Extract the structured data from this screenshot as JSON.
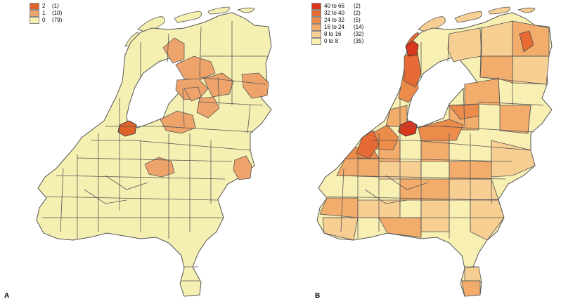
{
  "panels": [
    {
      "label": "A",
      "legend": [
        {
          "label": "2",
          "count": "(1)",
          "color": "#e0632a"
        },
        {
          "label": "1",
          "count": "(10)",
          "color": "#eea36a"
        },
        {
          "label": "0",
          "count": "(79)",
          "color": "#f5efb2"
        }
      ]
    },
    {
      "label": "B",
      "legend": [
        {
          "label": "40 to 66",
          "count": "(2)",
          "color": "#d9381e"
        },
        {
          "label": "32 to 40",
          "count": "(2)",
          "color": "#e56a33"
        },
        {
          "label": "24 to 32",
          "count": "(5)",
          "color": "#ec8c4a"
        },
        {
          "label": "16 to 24",
          "count": "(14)",
          "color": "#f2ad6c"
        },
        {
          "label": "8 to 16",
          "count": "(32)",
          "color": "#f7cf93"
        },
        {
          "label": "0 to 8",
          "count": "(35)",
          "color": "#f8efb3"
        }
      ]
    }
  ],
  "colors": {
    "border": "#555555",
    "water": "#ffffff"
  }
}
